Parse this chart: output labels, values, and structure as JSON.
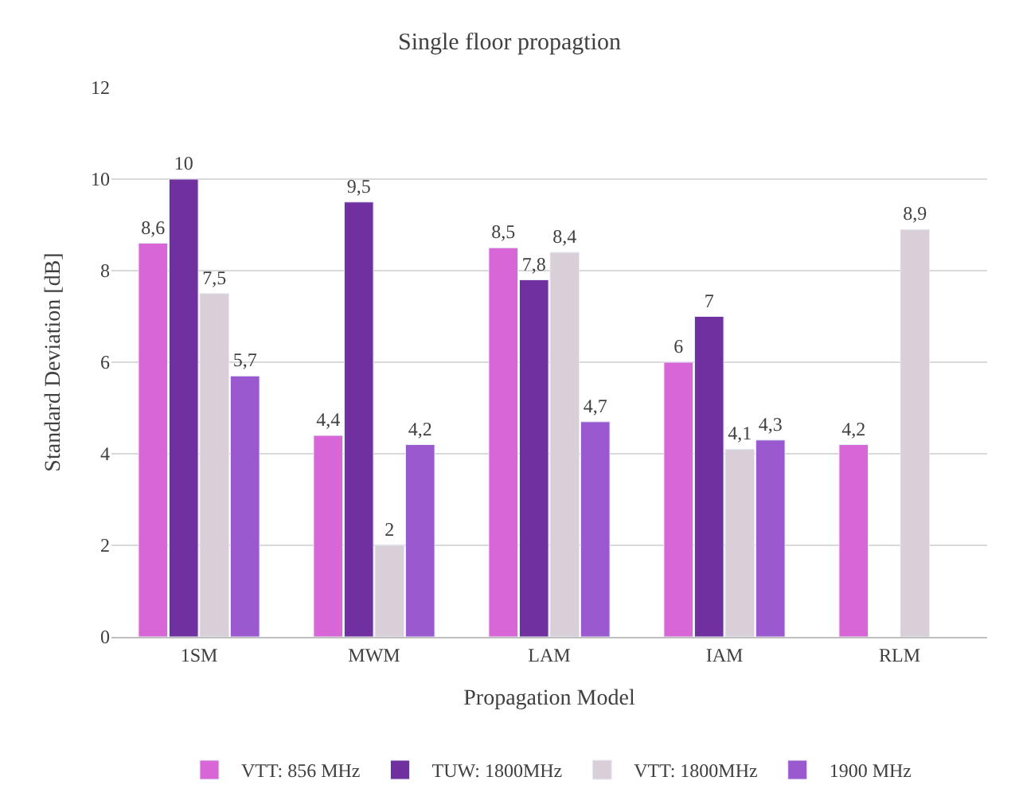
{
  "chart_data": {
    "type": "bar",
    "title": "Single floor propagtion",
    "xlabel": "Propagation Model",
    "ylabel": "Standard Deviation [dB]",
    "categories": [
      "1SM",
      "MWM",
      "LAM",
      "IAM",
      "RLM"
    ],
    "series": [
      {
        "name": "VTT: 856 MHz",
        "color": "#d966d6",
        "values": [
          8.6,
          4.4,
          8.5,
          6,
          4.2
        ],
        "value_labels": [
          "8,6",
          "4,4",
          "8,5",
          "6",
          "4,2"
        ]
      },
      {
        "name": "TUW: 1800MHz",
        "color": "#7030a0",
        "values": [
          10,
          9.5,
          7.8,
          7,
          null
        ],
        "value_labels": [
          "10",
          "9,5",
          "7,8",
          "7",
          null
        ]
      },
      {
        "name": "VTT: 1800MHz",
        "color": "#d9cfd9",
        "values": [
          7.5,
          2,
          8.4,
          4.1,
          8.9
        ],
        "value_labels": [
          "7,5",
          "2",
          "8,4",
          "4,1",
          "8,9"
        ]
      },
      {
        "name": "1900 MHz",
        "color": "#9b59d0",
        "values": [
          5.7,
          4.2,
          4.7,
          4.3,
          null
        ],
        "value_labels": [
          "5,7",
          "4,2",
          "4,7",
          "4,3",
          null
        ]
      }
    ],
    "ylim": [
      0,
      12
    ],
    "yticks": [
      0,
      2,
      4,
      6,
      8,
      10,
      12
    ],
    "grid": "y",
    "legend": "bottom"
  }
}
